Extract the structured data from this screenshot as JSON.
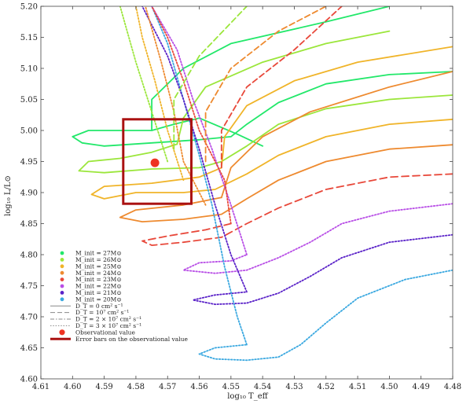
{
  "chart_data": {
    "type": "line",
    "title": "",
    "xlabel": "log₁₀ T_eff",
    "ylabel": "log₁₀ L/L⊙",
    "xlim": [
      4.61,
      4.48
    ],
    "ylim": [
      4.6,
      5.2
    ],
    "x_reversed": true,
    "grid": false,
    "xticks": [
      "4.61",
      "4.60",
      "4.59",
      "4.58",
      "4.57",
      "4.56",
      "4.55",
      "4.54",
      "4.53",
      "4.52",
      "4.51",
      "4.50",
      "4.49",
      "4.48"
    ],
    "yticks": [
      "4.60",
      "4.65",
      "4.70",
      "4.75",
      "4.80",
      "4.85",
      "4.90",
      "4.95",
      "5.00",
      "5.05",
      "5.10",
      "5.15",
      "5.20"
    ],
    "legend_position": "bottom-left",
    "legend": [
      {
        "label": "M_init = 27M⊙",
        "color": "#22e86a",
        "kind": "dot"
      },
      {
        "label": "M_init = 26M⊙",
        "color": "#9be63b",
        "kind": "dot"
      },
      {
        "label": "M_init = 25M⊙",
        "color": "#f0b429",
        "kind": "dot"
      },
      {
        "label": "M_init = 24M⊙",
        "color": "#ee8a2f",
        "kind": "dot"
      },
      {
        "label": "M_init = 23M⊙",
        "color": "#e8483a",
        "kind": "dot"
      },
      {
        "label": "M_init = 22M⊙",
        "color": "#b84ee6",
        "kind": "dot"
      },
      {
        "label": "M_init = 21M⊙",
        "color": "#5a22c8",
        "kind": "dot"
      },
      {
        "label": "M_init = 20M⊙",
        "color": "#3aa8e0",
        "kind": "dot"
      },
      {
        "label": "D_T = 0 cm² s⁻¹",
        "color": "#888888",
        "kind": "solid"
      },
      {
        "label": "D_T = 10⁷ cm² s⁻¹",
        "color": "#888888",
        "kind": "dashed"
      },
      {
        "label": "D_T = 2 × 10⁷ cm² s⁻¹",
        "color": "#888888",
        "kind": "dashdot"
      },
      {
        "label": "D_T = 3 × 10⁷ cm² s⁻¹",
        "color": "#888888",
        "kind": "dotted"
      },
      {
        "label": "Observational value",
        "color": "#ee3322",
        "kind": "bigdot"
      },
      {
        "label": "Error bars on the observational value",
        "color": "#aa1111",
        "kind": "thick"
      }
    ],
    "observation": {
      "x": 4.574,
      "y": 4.948,
      "color": "#ee3322"
    },
    "error_box": {
      "x": [
        4.584,
        4.5625
      ],
      "y": [
        4.882,
        5.018
      ],
      "color": "#aa1111"
    },
    "series": [
      {
        "mass": "27",
        "style": "solid",
        "color": "#22e86a",
        "points": [
          [
            4.48,
            5.095
          ],
          [
            4.5,
            5.09
          ],
          [
            4.52,
            5.075
          ],
          [
            4.535,
            5.045
          ],
          [
            4.545,
            5.01
          ],
          [
            4.55,
            4.99
          ],
          [
            4.56,
            4.985
          ],
          [
            4.575,
            4.98
          ],
          [
            4.59,
            4.975
          ],
          [
            4.597,
            4.98
          ],
          [
            4.6,
            4.99
          ],
          [
            4.595,
            5.0
          ],
          [
            4.582,
            5.0
          ],
          [
            4.575,
            5.0
          ],
          [
            4.568,
            5.01
          ],
          [
            4.56,
            5.02
          ],
          [
            4.548,
            4.994
          ],
          [
            4.54,
            4.975
          ]
        ]
      },
      {
        "mass": "27",
        "style": "solid2",
        "color": "#22e86a",
        "points": [
          [
            4.575,
            5.0
          ],
          [
            4.575,
            5.05
          ],
          [
            4.565,
            5.1
          ],
          [
            4.55,
            5.14
          ],
          [
            4.52,
            5.175
          ],
          [
            4.5,
            5.2
          ]
        ]
      },
      {
        "mass": "26",
        "style": "solid",
        "color": "#9be63b",
        "points": [
          [
            4.48,
            5.057
          ],
          [
            4.5,
            5.05
          ],
          [
            4.52,
            5.035
          ],
          [
            4.535,
            5.01
          ],
          [
            4.545,
            4.975
          ],
          [
            4.553,
            4.95
          ],
          [
            4.56,
            4.94
          ],
          [
            4.575,
            4.938
          ],
          [
            4.59,
            4.932
          ],
          [
            4.598,
            4.935
          ],
          [
            4.595,
            4.95
          ],
          [
            4.585,
            4.955
          ],
          [
            4.575,
            4.965
          ],
          [
            4.567,
            4.978
          ]
        ]
      },
      {
        "mass": "26",
        "style": "solid2",
        "color": "#9be63b",
        "points": [
          [
            4.567,
            4.978
          ],
          [
            4.565,
            5.02
          ],
          [
            4.558,
            5.07
          ],
          [
            4.54,
            5.11
          ],
          [
            4.52,
            5.14
          ],
          [
            4.5,
            5.16
          ]
        ]
      },
      {
        "mass": "25",
        "style": "solid",
        "color": "#f0b429",
        "points": [
          [
            4.48,
            5.018
          ],
          [
            4.5,
            5.01
          ],
          [
            4.52,
            4.99
          ],
          [
            4.535,
            4.96
          ],
          [
            4.545,
            4.93
          ],
          [
            4.555,
            4.905
          ],
          [
            4.565,
            4.9
          ],
          [
            4.58,
            4.9
          ],
          [
            4.59,
            4.89
          ],
          [
            4.594,
            4.897
          ],
          [
            4.59,
            4.91
          ],
          [
            4.575,
            4.915
          ],
          [
            4.56,
            4.925
          ],
          [
            4.553,
            4.94
          ]
        ]
      },
      {
        "mass": "25",
        "style": "solid2",
        "color": "#f0b429",
        "points": [
          [
            4.553,
            4.94
          ],
          [
            4.552,
            4.99
          ],
          [
            4.545,
            5.04
          ],
          [
            4.53,
            5.08
          ],
          [
            4.51,
            5.11
          ],
          [
            4.48,
            5.135
          ]
        ]
      },
      {
        "mass": "24",
        "style": "solid",
        "color": "#ee8a2f",
        "points": [
          [
            4.48,
            4.977
          ],
          [
            4.5,
            4.97
          ],
          [
            4.52,
            4.95
          ],
          [
            4.535,
            4.92
          ],
          [
            4.545,
            4.89
          ],
          [
            4.553,
            4.865
          ],
          [
            4.565,
            4.857
          ],
          [
            4.578,
            4.853
          ],
          [
            4.585,
            4.86
          ],
          [
            4.58,
            4.872
          ],
          [
            4.565,
            4.88
          ],
          [
            4.553,
            4.892
          ]
        ]
      },
      {
        "mass": "24",
        "style": "solid2",
        "color": "#ee8a2f",
        "points": [
          [
            4.553,
            4.892
          ],
          [
            4.55,
            4.94
          ],
          [
            4.54,
            4.99
          ],
          [
            4.525,
            5.03
          ],
          [
            4.5,
            5.07
          ],
          [
            4.48,
            5.095
          ]
        ]
      },
      {
        "mass": "23",
        "style": "dashed",
        "color": "#e8483a",
        "points": [
          [
            4.48,
            4.93
          ],
          [
            4.5,
            4.925
          ],
          [
            4.52,
            4.905
          ],
          [
            4.535,
            4.875
          ],
          [
            4.545,
            4.85
          ],
          [
            4.553,
            4.828
          ],
          [
            4.565,
            4.82
          ],
          [
            4.575,
            4.815
          ],
          [
            4.578,
            4.822
          ],
          [
            4.57,
            4.83
          ],
          [
            4.558,
            4.84
          ],
          [
            4.55,
            4.85
          ]
        ]
      },
      {
        "mass": "22",
        "style": "dotted",
        "color": "#b84ee6",
        "points": [
          [
            4.48,
            4.882
          ],
          [
            4.5,
            4.87
          ],
          [
            4.515,
            4.85
          ],
          [
            4.525,
            4.82
          ],
          [
            4.535,
            4.795
          ],
          [
            4.545,
            4.775
          ],
          [
            4.555,
            4.77
          ],
          [
            4.565,
            4.775
          ],
          [
            4.56,
            4.787
          ],
          [
            4.55,
            4.79
          ],
          [
            4.545,
            4.8
          ]
        ]
      },
      {
        "mass": "21",
        "style": "dotted",
        "color": "#5a22c8",
        "points": [
          [
            4.48,
            4.832
          ],
          [
            4.5,
            4.82
          ],
          [
            4.515,
            4.795
          ],
          [
            4.525,
            4.765
          ],
          [
            4.535,
            4.738
          ],
          [
            4.545,
            4.722
          ],
          [
            4.555,
            4.72
          ],
          [
            4.562,
            4.727
          ],
          [
            4.555,
            4.735
          ],
          [
            4.545,
            4.74
          ]
        ]
      },
      {
        "mass": "20",
        "style": "dotted",
        "color": "#3aa8e0",
        "points": [
          [
            4.48,
            4.775
          ],
          [
            4.495,
            4.76
          ],
          [
            4.51,
            4.73
          ],
          [
            4.52,
            4.69
          ],
          [
            4.528,
            4.655
          ],
          [
            4.535,
            4.635
          ],
          [
            4.545,
            4.63
          ],
          [
            4.555,
            4.632
          ],
          [
            4.56,
            4.64
          ],
          [
            4.555,
            4.65
          ],
          [
            4.545,
            4.655
          ]
        ]
      },
      {
        "mass": "20",
        "style": "dotted2",
        "color": "#3aa8e0",
        "points": [
          [
            4.545,
            4.655
          ],
          [
            4.548,
            4.7
          ],
          [
            4.552,
            4.78
          ],
          [
            4.556,
            4.88
          ],
          [
            4.56,
            4.96
          ],
          [
            4.565,
            5.05
          ],
          [
            4.57,
            5.14
          ],
          [
            4.575,
            5.2
          ]
        ]
      },
      {
        "mass": "21",
        "style": "dotted2",
        "color": "#5a22c8",
        "points": [
          [
            4.545,
            4.74
          ],
          [
            4.55,
            4.8
          ],
          [
            4.555,
            4.88
          ],
          [
            4.56,
            4.97
          ],
          [
            4.565,
            5.05
          ],
          [
            4.57,
            5.12
          ],
          [
            4.578,
            5.2
          ]
        ]
      },
      {
        "mass": "22",
        "style": "dotted2",
        "color": "#b84ee6",
        "points": [
          [
            4.545,
            4.8
          ],
          [
            4.55,
            4.88
          ],
          [
            4.556,
            4.97
          ],
          [
            4.562,
            5.05
          ],
          [
            4.567,
            5.13
          ],
          [
            4.575,
            5.2
          ]
        ]
      },
      {
        "mass": "23",
        "style": "dotted2",
        "color": "#e8483a",
        "points": [
          [
            4.55,
            4.85
          ],
          [
            4.552,
            4.92
          ],
          [
            4.56,
            5.0
          ],
          [
            4.565,
            5.08
          ],
          [
            4.57,
            5.15
          ],
          [
            4.575,
            5.2
          ]
        ]
      },
      {
        "mass": "24",
        "style": "dotted2",
        "color": "#ee8a2f",
        "points": [
          [
            4.558,
            4.88
          ],
          [
            4.565,
            4.95
          ],
          [
            4.568,
            5.03
          ],
          [
            4.572,
            5.11
          ],
          [
            4.577,
            5.2
          ]
        ]
      },
      {
        "mass": "25",
        "style": "dotted2",
        "color": "#f0b429",
        "points": [
          [
            4.565,
            4.92
          ],
          [
            4.57,
            5.0
          ],
          [
            4.574,
            5.08
          ],
          [
            4.578,
            5.15
          ],
          [
            4.58,
            5.2
          ]
        ]
      },
      {
        "mass": "26",
        "style": "dotted2",
        "color": "#9be63b",
        "points": [
          [
            4.57,
            4.95
          ],
          [
            4.575,
            5.03
          ],
          [
            4.58,
            5.11
          ],
          [
            4.585,
            5.2
          ]
        ]
      },
      {
        "mass": "23",
        "style": "dashed2",
        "color": "#e8483a",
        "points": [
          [
            4.553,
            4.94
          ],
          [
            4.553,
            5.0
          ],
          [
            4.545,
            5.07
          ],
          [
            4.53,
            5.13
          ],
          [
            4.515,
            5.2
          ]
        ]
      },
      {
        "mass": "26",
        "style": "dashed2",
        "color": "#9be63b",
        "points": [
          [
            4.568,
            4.97
          ],
          [
            4.568,
            5.05
          ],
          [
            4.56,
            5.12
          ],
          [
            4.545,
            5.2
          ]
        ]
      },
      {
        "mass": "24",
        "style": "dashed2",
        "color": "#ee8a2f",
        "points": [
          [
            4.558,
            4.95
          ],
          [
            4.558,
            5.03
          ],
          [
            4.55,
            5.1
          ],
          [
            4.535,
            5.16
          ],
          [
            4.52,
            5.2
          ]
        ]
      }
    ]
  }
}
